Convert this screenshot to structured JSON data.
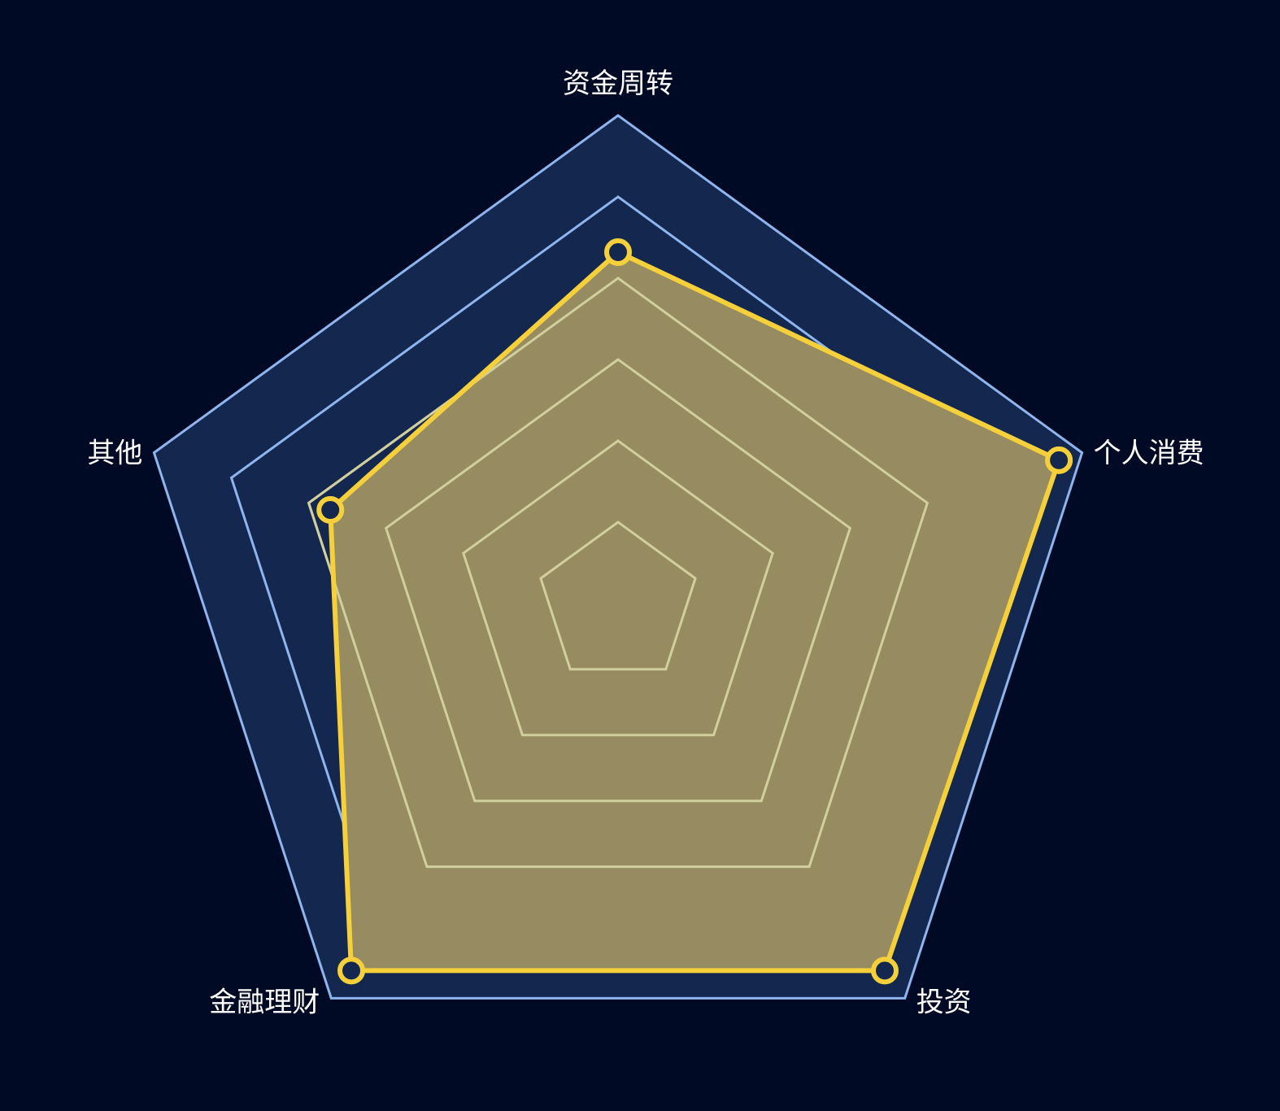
{
  "chart_data": {
    "type": "radar",
    "title": "",
    "indicators": [
      "资金周转",
      "个人消费",
      "投资",
      "金融理财",
      "其他"
    ],
    "max": 100,
    "split_number": 6,
    "series": [
      {
        "values": [
          72,
          95,
          93,
          93,
          62
        ]
      }
    ],
    "colors": {
      "background": "#000a24",
      "outer_band": "#13274f",
      "outer_grid_line": "#8fb5ef",
      "inner_grid_line": "#d2cf9e",
      "series_line": "#f5d03a",
      "series_fill": "#968b61",
      "point_fill": "#13274f",
      "label": "#ffffff"
    }
  }
}
